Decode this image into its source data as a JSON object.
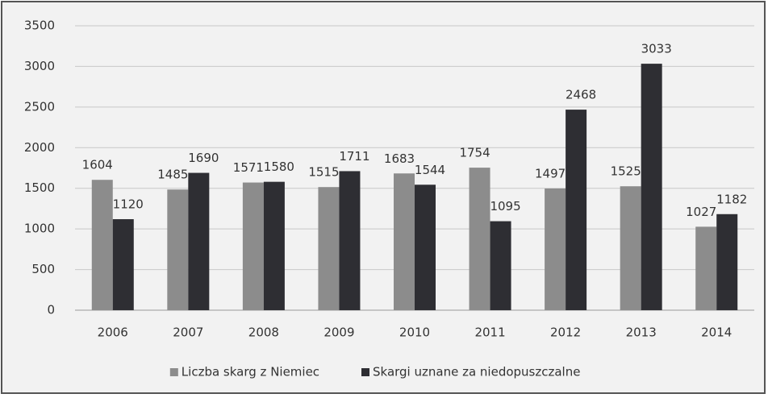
{
  "chart_data": {
    "type": "bar",
    "categories": [
      "2006",
      "2007",
      "2008",
      "2009",
      "2010",
      "2011",
      "2012",
      "2013",
      "2014"
    ],
    "series": [
      {
        "name": "Liczba skarg z Niemiec",
        "color": "#8c8c8c",
        "values": [
          1604,
          1485,
          1571,
          1515,
          1683,
          1754,
          1497,
          1525,
          1027
        ]
      },
      {
        "name": "Skargi uznane za niedopuszczalne",
        "color": "#2e2e33",
        "values": [
          1120,
          1690,
          1580,
          1711,
          1544,
          1095,
          2468,
          3033,
          1182
        ]
      }
    ],
    "ylim": [
      0,
      3500
    ],
    "yticks": [
      0,
      500,
      1000,
      1500,
      2000,
      2500,
      3000,
      3500
    ],
    "grid": true,
    "legend": "bottom"
  }
}
